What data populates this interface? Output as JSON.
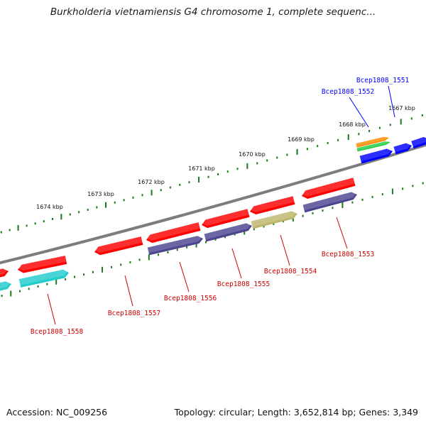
{
  "title": "Burkholderia vietnamiensis G4 chromosome 1, complete sequenc...",
  "footer": {
    "accession": "Accession: NC_009256",
    "stats": "Topology: circular; Length: 3,652,814 bp; Genes: 3,349"
  },
  "ruler_ticks": [
    "1667 kbp",
    "1668 kbp",
    "1669 kbp",
    "1670 kbp",
    "1671 kbp",
    "1672 kbp",
    "1673 kbp",
    "1674 kbp"
  ],
  "genes": [
    {
      "label": "Bcep1808_1551",
      "color": "#0000ff"
    },
    {
      "label": "Bcep1808_1552",
      "color": "#0000ff"
    },
    {
      "label": "Bcep1808_1553",
      "color": "#cc0000"
    },
    {
      "label": "Bcep1808_1554",
      "color": "#cc0000"
    },
    {
      "label": "Bcep1808_1555",
      "color": "#cc0000"
    },
    {
      "label": "Bcep1808_1556",
      "color": "#cc0000"
    },
    {
      "label": "Bcep1808_1557",
      "color": "#cc0000"
    },
    {
      "label": "Bcep1808_1558",
      "color": "#cc0000"
    }
  ],
  "colors": {
    "backbone": "#808080",
    "tick": "#1a7a1a",
    "forward_cds": "#0000ff",
    "reverse_cds": "#ff0000",
    "cog_purple": "#4b4590",
    "cog_cyan": "#22cccc",
    "cog_khaki": "#bdb76b",
    "cog_orange": "#ff8c00",
    "cog_green": "#22cc44"
  }
}
